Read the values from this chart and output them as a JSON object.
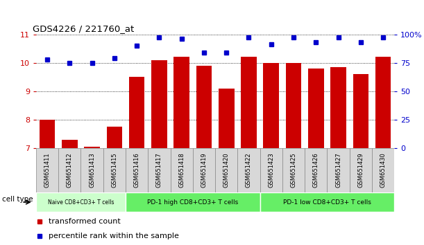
{
  "title": "GDS4226 / 221760_at",
  "samples": [
    "GSM651411",
    "GSM651412",
    "GSM651413",
    "GSM651415",
    "GSM651416",
    "GSM651417",
    "GSM651418",
    "GSM651419",
    "GSM651420",
    "GSM651422",
    "GSM651423",
    "GSM651425",
    "GSM651426",
    "GSM651427",
    "GSM651429",
    "GSM651430"
  ],
  "transformed_count": [
    8.0,
    7.3,
    7.05,
    7.75,
    9.5,
    10.1,
    10.2,
    9.9,
    9.1,
    10.2,
    10.0,
    10.0,
    9.8,
    9.85,
    9.6,
    10.2
  ],
  "percentile_rank": [
    78,
    75,
    75,
    79,
    90,
    97,
    96,
    84,
    84,
    97,
    91,
    97,
    93,
    97,
    93,
    97
  ],
  "bar_color": "#cc0000",
  "dot_color": "#0000cc",
  "ylim_left": [
    7,
    11
  ],
  "ylim_right": [
    0,
    100
  ],
  "yticks_left": [
    7,
    8,
    9,
    10,
    11
  ],
  "yticks_right": [
    0,
    25,
    50,
    75,
    100
  ],
  "ytick_labels_right": [
    "0",
    "25",
    "50",
    "75",
    "100%"
  ],
  "groups": [
    {
      "label": "Naive CD8+CD3+ T cells",
      "start": 0,
      "end": 3,
      "color": "#ccffcc"
    },
    {
      "label": "PD-1 high CD8+CD3+ T cells",
      "start": 4,
      "end": 9,
      "color": "#66ee66"
    },
    {
      "label": "PD-1 low CD8+CD3+ T cells",
      "start": 10,
      "end": 15,
      "color": "#66ee66"
    }
  ],
  "cell_type_label": "cell type",
  "legend_transformed": "transformed count",
  "legend_percentile": "percentile rank within the sample",
  "bar_width": 0.7,
  "sample_box_color": "#d8d8d8",
  "sample_box_edge": "#888888"
}
